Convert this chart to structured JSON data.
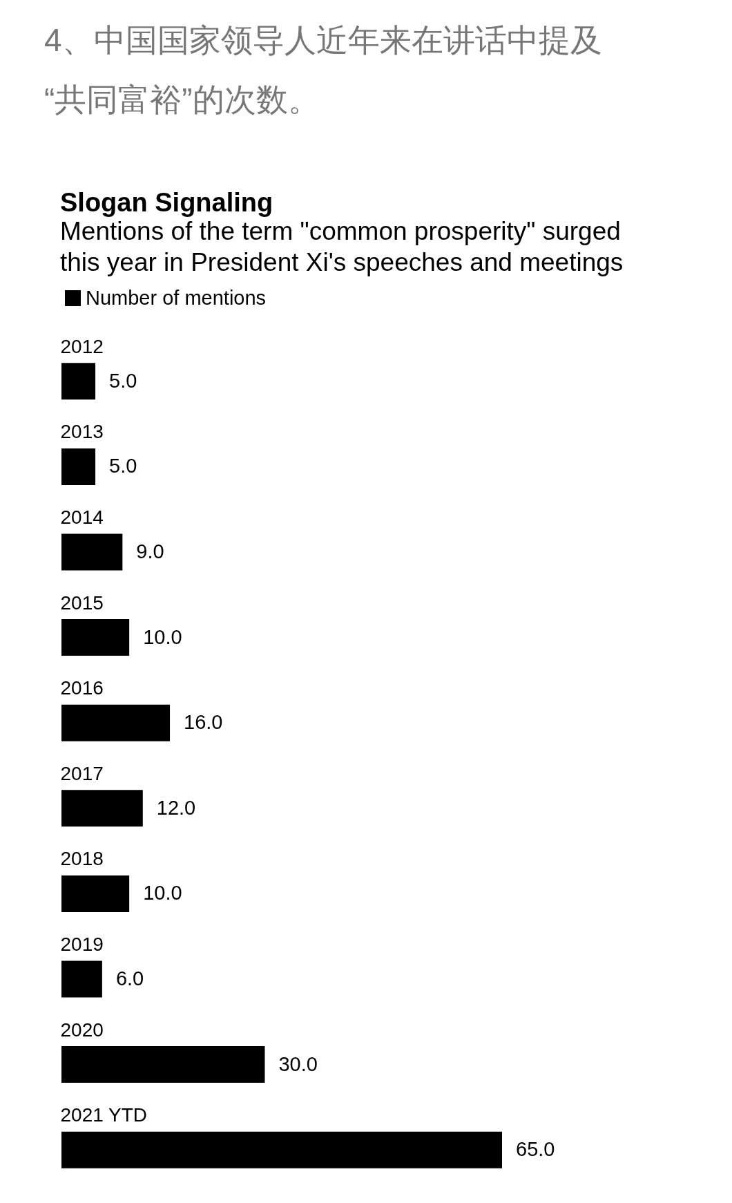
{
  "chart_data": {
    "type": "bar",
    "orientation": "horizontal",
    "title": "Slogan Signaling",
    "subtitle": "Mentions of the term \"common prosperity\" surged this year in President Xi's speeches and meetings",
    "annotations": [
      "4、中国国家领导人近年来在讲话中提及“共同富裕”的次数。"
    ],
    "categories": [
      "2012",
      "2013",
      "2014",
      "2015",
      "2016",
      "2017",
      "2018",
      "2019",
      "2020",
      "2021 YTD"
    ],
    "series": [
      {
        "name": "Number of mentions",
        "color": "#000000",
        "values": [
          5,
          5,
          9,
          10,
          16,
          12,
          10,
          6,
          30,
          65
        ],
        "value_labels": [
          "5.0",
          "5.0",
          "9.0",
          "10.0",
          "16.0",
          "12.0",
          "10.0",
          "6.0",
          "30.0",
          "65.0"
        ]
      }
    ],
    "legend": "top left"
  }
}
